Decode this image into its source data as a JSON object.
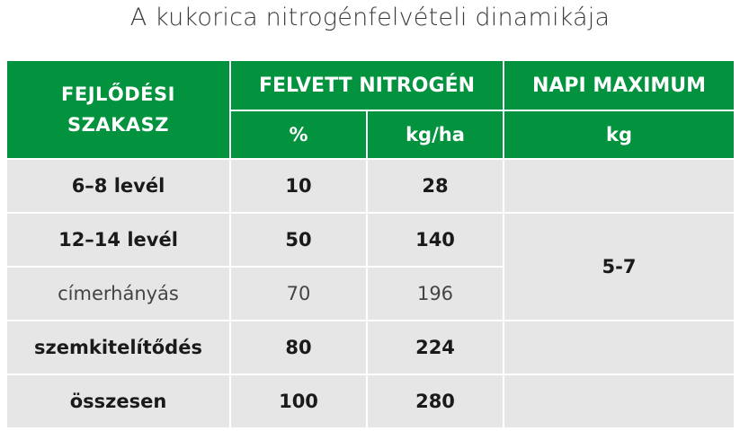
{
  "title": "A kukorica nitrogénfelvételi dinamikája",
  "header": {
    "stage_line1": "FEJLŐDÉSI",
    "stage_line2": "SZAKASZ",
    "nitrogen": "FELVETT NITROGÉN",
    "daily_max": "NAPI MAXIMUM",
    "percent_unit": "%",
    "kgha_unit": "kg/ha",
    "kg_unit": "kg"
  },
  "rows": [
    {
      "stage": "6–8 levél",
      "percent": "10",
      "kgha": "28"
    },
    {
      "stage": "12–14 levél",
      "percent": "50",
      "kgha": "140"
    },
    {
      "stage": "címerhányás",
      "percent": "70",
      "kgha": "196"
    },
    {
      "stage": "szemkitelítődés",
      "percent": "80",
      "kgha": "224"
    },
    {
      "stage": "összesen",
      "percent": "100",
      "kgha": "280"
    }
  ],
  "daily_max_value": "5-7"
}
